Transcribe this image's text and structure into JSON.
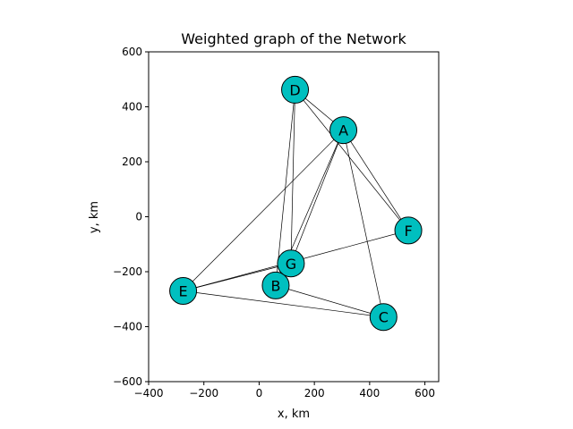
{
  "chart_data": {
    "type": "scatter",
    "title": "Weighted graph of the Network",
    "xlabel": "x, km",
    "ylabel": "y, km",
    "xlim": [
      -400,
      650
    ],
    "ylim": [
      -600,
      600
    ],
    "x_ticks": [
      -400,
      -200,
      0,
      200,
      400,
      600
    ],
    "y_ticks": [
      -600,
      -400,
      -200,
      0,
      200,
      400,
      600
    ],
    "x_tick_labels": [
      "−400",
      "−200",
      "0",
      "200",
      "400",
      "600"
    ],
    "y_tick_labels": [
      "−600",
      "−400",
      "−200",
      "0",
      "200",
      "400",
      "600"
    ],
    "grid": false,
    "node_color": "#00bfbf",
    "nodes": [
      {
        "name": "A",
        "x": 305,
        "y": 315
      },
      {
        "name": "B",
        "x": 60,
        "y": -250
      },
      {
        "name": "C",
        "x": 450,
        "y": -365
      },
      {
        "name": "D",
        "x": 130,
        "y": 462
      },
      {
        "name": "E",
        "x": -275,
        "y": -270
      },
      {
        "name": "F",
        "x": 540,
        "y": -50
      },
      {
        "name": "G",
        "x": 115,
        "y": -170
      }
    ],
    "edges": [
      [
        "A",
        "E"
      ],
      [
        "A",
        "G"
      ],
      [
        "A",
        "C"
      ],
      [
        "A",
        "F"
      ],
      [
        "D",
        "A"
      ],
      [
        "D",
        "B"
      ],
      [
        "D",
        "G"
      ],
      [
        "D",
        "F"
      ],
      [
        "E",
        "F"
      ],
      [
        "E",
        "C"
      ],
      [
        "E",
        "G"
      ],
      [
        "B",
        "C"
      ],
      [
        "A",
        "B"
      ]
    ]
  }
}
